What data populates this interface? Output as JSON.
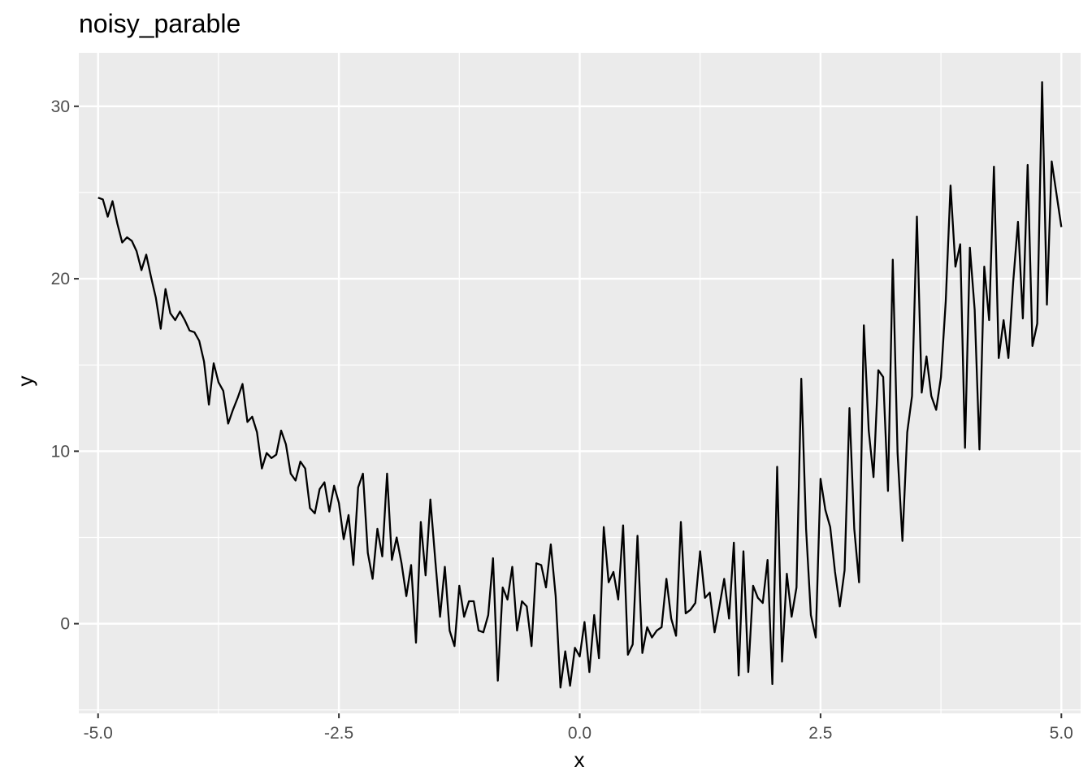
{
  "chart_data": {
    "type": "line",
    "title": "noisy_parable",
    "xlabel": "x",
    "ylabel": "y",
    "xlim": [
      -5.2,
      5.2
    ],
    "ylim": [
      -5.2,
      33.1
    ],
    "x_ticks": [
      {
        "value": -5,
        "label": "-5.0"
      },
      {
        "value": -2.5,
        "label": "-2.5"
      },
      {
        "value": 0,
        "label": "0.0"
      },
      {
        "value": 2.5,
        "label": "2.5"
      },
      {
        "value": 5,
        "label": "5.0"
      }
    ],
    "y_ticks": [
      {
        "value": 0,
        "label": "0"
      },
      {
        "value": 10,
        "label": "10"
      },
      {
        "value": 20,
        "label": "20"
      },
      {
        "value": 30,
        "label": "30"
      }
    ],
    "x_minor": [
      -3.75,
      -1.25,
      1.25,
      3.75
    ],
    "y_minor": [
      -5,
      5,
      15,
      25
    ],
    "grid": true,
    "panel_background": "#ebebeb",
    "grid_color": "#ffffff",
    "line_color": "#000000",
    "series": [
      {
        "values": [
          {
            "x": -5.0,
            "y": 24.7
          },
          {
            "x": -4.95,
            "y": 24.6
          },
          {
            "x": -4.9,
            "y": 23.6
          },
          {
            "x": -4.85,
            "y": 24.5
          },
          {
            "x": -4.8,
            "y": 23.2
          },
          {
            "x": -4.75,
            "y": 22.1
          },
          {
            "x": -4.7,
            "y": 22.4
          },
          {
            "x": -4.65,
            "y": 22.2
          },
          {
            "x": -4.6,
            "y": 21.6
          },
          {
            "x": -4.55,
            "y": 20.5
          },
          {
            "x": -4.5,
            "y": 21.4
          },
          {
            "x": -4.45,
            "y": 20.1
          },
          {
            "x": -4.4,
            "y": 18.9
          },
          {
            "x": -4.35,
            "y": 17.1
          },
          {
            "x": -4.3,
            "y": 19.4
          },
          {
            "x": -4.25,
            "y": 18.0
          },
          {
            "x": -4.2,
            "y": 17.6
          },
          {
            "x": -4.15,
            "y": 18.1
          },
          {
            "x": -4.1,
            "y": 17.6
          },
          {
            "x": -4.05,
            "y": 17.0
          },
          {
            "x": -4.0,
            "y": 16.9
          },
          {
            "x": -3.95,
            "y": 16.4
          },
          {
            "x": -3.9,
            "y": 15.2
          },
          {
            "x": -3.85,
            "y": 12.7
          },
          {
            "x": -3.8,
            "y": 15.1
          },
          {
            "x": -3.75,
            "y": 14.0
          },
          {
            "x": -3.7,
            "y": 13.5
          },
          {
            "x": -3.65,
            "y": 11.6
          },
          {
            "x": -3.6,
            "y": 12.4
          },
          {
            "x": -3.55,
            "y": 13.1
          },
          {
            "x": -3.5,
            "y": 13.9
          },
          {
            "x": -3.45,
            "y": 11.7
          },
          {
            "x": -3.4,
            "y": 12.0
          },
          {
            "x": -3.35,
            "y": 11.1
          },
          {
            "x": -3.3,
            "y": 9.0
          },
          {
            "x": -3.25,
            "y": 9.9
          },
          {
            "x": -3.2,
            "y": 9.6
          },
          {
            "x": -3.15,
            "y": 9.8
          },
          {
            "x": -3.1,
            "y": 11.2
          },
          {
            "x": -3.05,
            "y": 10.4
          },
          {
            "x": -3.0,
            "y": 8.7
          },
          {
            "x": -2.95,
            "y": 8.3
          },
          {
            "x": -2.9,
            "y": 9.4
          },
          {
            "x": -2.85,
            "y": 9.0
          },
          {
            "x": -2.8,
            "y": 6.7
          },
          {
            "x": -2.75,
            "y": 6.4
          },
          {
            "x": -2.7,
            "y": 7.8
          },
          {
            "x": -2.65,
            "y": 8.2
          },
          {
            "x": -2.6,
            "y": 6.5
          },
          {
            "x": -2.55,
            "y": 8.0
          },
          {
            "x": -2.5,
            "y": 7.0
          },
          {
            "x": -2.45,
            "y": 4.9
          },
          {
            "x": -2.4,
            "y": 6.3
          },
          {
            "x": -2.35,
            "y": 3.4
          },
          {
            "x": -2.3,
            "y": 7.9
          },
          {
            "x": -2.25,
            "y": 8.7
          },
          {
            "x": -2.2,
            "y": 4.1
          },
          {
            "x": -2.15,
            "y": 2.6
          },
          {
            "x": -2.1,
            "y": 5.5
          },
          {
            "x": -2.05,
            "y": 3.9
          },
          {
            "x": -2.0,
            "y": 8.7
          },
          {
            "x": -1.95,
            "y": 3.7
          },
          {
            "x": -1.9,
            "y": 5.0
          },
          {
            "x": -1.85,
            "y": 3.5
          },
          {
            "x": -1.8,
            "y": 1.6
          },
          {
            "x": -1.75,
            "y": 3.4
          },
          {
            "x": -1.7,
            "y": -1.1
          },
          {
            "x": -1.65,
            "y": 5.9
          },
          {
            "x": -1.6,
            "y": 2.8
          },
          {
            "x": -1.55,
            "y": 7.2
          },
          {
            "x": -1.5,
            "y": 3.7
          },
          {
            "x": -1.45,
            "y": 0.4
          },
          {
            "x": -1.4,
            "y": 3.3
          },
          {
            "x": -1.35,
            "y": -0.4
          },
          {
            "x": -1.3,
            "y": -1.3
          },
          {
            "x": -1.25,
            "y": 2.2
          },
          {
            "x": -1.2,
            "y": 0.4
          },
          {
            "x": -1.15,
            "y": 1.3
          },
          {
            "x": -1.1,
            "y": 1.3
          },
          {
            "x": -1.05,
            "y": -0.4
          },
          {
            "x": -1.0,
            "y": -0.5
          },
          {
            "x": -0.95,
            "y": 0.5
          },
          {
            "x": -0.9,
            "y": 3.8
          },
          {
            "x": -0.85,
            "y": -3.3
          },
          {
            "x": -0.8,
            "y": 2.1
          },
          {
            "x": -0.75,
            "y": 1.4
          },
          {
            "x": -0.7,
            "y": 3.3
          },
          {
            "x": -0.65,
            "y": -0.4
          },
          {
            "x": -0.6,
            "y": 1.3
          },
          {
            "x": -0.55,
            "y": 1.0
          },
          {
            "x": -0.5,
            "y": -1.3
          },
          {
            "x": -0.45,
            "y": 3.5
          },
          {
            "x": -0.4,
            "y": 3.4
          },
          {
            "x": -0.35,
            "y": 2.1
          },
          {
            "x": -0.3,
            "y": 4.6
          },
          {
            "x": -0.25,
            "y": 1.6
          },
          {
            "x": -0.2,
            "y": -3.7
          },
          {
            "x": -0.15,
            "y": -1.6
          },
          {
            "x": -0.1,
            "y": -3.6
          },
          {
            "x": -0.05,
            "y": -1.4
          },
          {
            "x": 0.0,
            "y": -1.9
          },
          {
            "x": 0.05,
            "y": 0.1
          },
          {
            "x": 0.1,
            "y": -2.8
          },
          {
            "x": 0.15,
            "y": 0.5
          },
          {
            "x": 0.2,
            "y": -2.0
          },
          {
            "x": 0.25,
            "y": 5.6
          },
          {
            "x": 0.3,
            "y": 2.4
          },
          {
            "x": 0.35,
            "y": 3.0
          },
          {
            "x": 0.4,
            "y": 1.4
          },
          {
            "x": 0.45,
            "y": 5.7
          },
          {
            "x": 0.5,
            "y": -1.8
          },
          {
            "x": 0.55,
            "y": -1.2
          },
          {
            "x": 0.6,
            "y": 5.1
          },
          {
            "x": 0.65,
            "y": -1.7
          },
          {
            "x": 0.7,
            "y": -0.2
          },
          {
            "x": 0.75,
            "y": -0.8
          },
          {
            "x": 0.8,
            "y": -0.4
          },
          {
            "x": 0.85,
            "y": -0.2
          },
          {
            "x": 0.9,
            "y": 2.6
          },
          {
            "x": 0.95,
            "y": 0.3
          },
          {
            "x": 1.0,
            "y": -0.7
          },
          {
            "x": 1.05,
            "y": 5.9
          },
          {
            "x": 1.1,
            "y": 0.6
          },
          {
            "x": 1.15,
            "y": 0.8
          },
          {
            "x": 1.2,
            "y": 1.2
          },
          {
            "x": 1.25,
            "y": 4.2
          },
          {
            "x": 1.3,
            "y": 1.5
          },
          {
            "x": 1.35,
            "y": 1.8
          },
          {
            "x": 1.4,
            "y": -0.5
          },
          {
            "x": 1.45,
            "y": 1.0
          },
          {
            "x": 1.5,
            "y": 2.6
          },
          {
            "x": 1.55,
            "y": 0.3
          },
          {
            "x": 1.6,
            "y": 4.7
          },
          {
            "x": 1.65,
            "y": -3.0
          },
          {
            "x": 1.7,
            "y": 4.2
          },
          {
            "x": 1.75,
            "y": -2.8
          },
          {
            "x": 1.8,
            "y": 2.2
          },
          {
            "x": 1.85,
            "y": 1.5
          },
          {
            "x": 1.9,
            "y": 1.2
          },
          {
            "x": 1.95,
            "y": 3.7
          },
          {
            "x": 2.0,
            "y": -3.5
          },
          {
            "x": 2.05,
            "y": 9.1
          },
          {
            "x": 2.1,
            "y": -2.2
          },
          {
            "x": 2.15,
            "y": 2.9
          },
          {
            "x": 2.2,
            "y": 0.4
          },
          {
            "x": 2.25,
            "y": 2.1
          },
          {
            "x": 2.3,
            "y": 14.2
          },
          {
            "x": 2.35,
            "y": 5.5
          },
          {
            "x": 2.4,
            "y": 0.5
          },
          {
            "x": 2.45,
            "y": -0.8
          },
          {
            "x": 2.5,
            "y": 8.4
          },
          {
            "x": 2.55,
            "y": 6.6
          },
          {
            "x": 2.6,
            "y": 5.6
          },
          {
            "x": 2.65,
            "y": 3.0
          },
          {
            "x": 2.7,
            "y": 1.0
          },
          {
            "x": 2.75,
            "y": 3.1
          },
          {
            "x": 2.8,
            "y": 12.5
          },
          {
            "x": 2.85,
            "y": 5.5
          },
          {
            "x": 2.9,
            "y": 2.4
          },
          {
            "x": 2.95,
            "y": 17.3
          },
          {
            "x": 3.0,
            "y": 11.2
          },
          {
            "x": 3.05,
            "y": 8.5
          },
          {
            "x": 3.1,
            "y": 14.7
          },
          {
            "x": 3.15,
            "y": 14.3
          },
          {
            "x": 3.2,
            "y": 7.7
          },
          {
            "x": 3.25,
            "y": 21.1
          },
          {
            "x": 3.3,
            "y": 9.9
          },
          {
            "x": 3.35,
            "y": 4.8
          },
          {
            "x": 3.4,
            "y": 11.1
          },
          {
            "x": 3.45,
            "y": 13.2
          },
          {
            "x": 3.5,
            "y": 23.6
          },
          {
            "x": 3.55,
            "y": 13.4
          },
          {
            "x": 3.6,
            "y": 15.5
          },
          {
            "x": 3.65,
            "y": 13.2
          },
          {
            "x": 3.7,
            "y": 12.4
          },
          {
            "x": 3.75,
            "y": 14.3
          },
          {
            "x": 3.8,
            "y": 18.7
          },
          {
            "x": 3.85,
            "y": 25.4
          },
          {
            "x": 3.9,
            "y": 20.7
          },
          {
            "x": 3.95,
            "y": 22.0
          },
          {
            "x": 4.0,
            "y": 10.2
          },
          {
            "x": 4.05,
            "y": 21.8
          },
          {
            "x": 4.1,
            "y": 18.2
          },
          {
            "x": 4.15,
            "y": 10.1
          },
          {
            "x": 4.2,
            "y": 20.7
          },
          {
            "x": 4.25,
            "y": 17.6
          },
          {
            "x": 4.3,
            "y": 26.5
          },
          {
            "x": 4.35,
            "y": 15.4
          },
          {
            "x": 4.4,
            "y": 17.6
          },
          {
            "x": 4.45,
            "y": 15.4
          },
          {
            "x": 4.5,
            "y": 19.8
          },
          {
            "x": 4.55,
            "y": 23.3
          },
          {
            "x": 4.6,
            "y": 17.7
          },
          {
            "x": 4.65,
            "y": 26.6
          },
          {
            "x": 4.7,
            "y": 16.1
          },
          {
            "x": 4.75,
            "y": 17.4
          },
          {
            "x": 4.8,
            "y": 31.4
          },
          {
            "x": 4.85,
            "y": 18.5
          },
          {
            "x": 4.9,
            "y": 26.8
          },
          {
            "x": 5.0,
            "y": 23.0
          }
        ]
      }
    ]
  }
}
